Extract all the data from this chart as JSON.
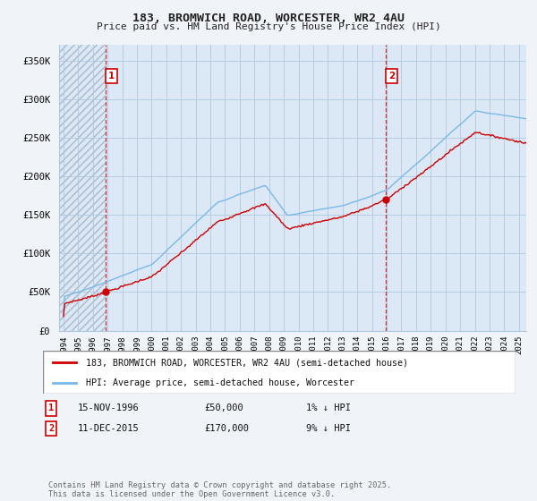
{
  "title": "183, BROMWICH ROAD, WORCESTER, WR2 4AU",
  "subtitle": "Price paid vs. HM Land Registry's House Price Index (HPI)",
  "ylabel_ticks": [
    "£0",
    "£50K",
    "£100K",
    "£150K",
    "£200K",
    "£250K",
    "£300K",
    "£350K"
  ],
  "ytick_values": [
    0,
    50000,
    100000,
    150000,
    200000,
    250000,
    300000,
    350000
  ],
  "ylim": [
    0,
    370000
  ],
  "xlim_start": 1993.7,
  "xlim_end": 2025.5,
  "sale1_date": 1996.88,
  "sale1_price": 50000,
  "sale1_label": "1",
  "sale2_date": 2015.95,
  "sale2_price": 170000,
  "sale2_label": "2",
  "hpi_color": "#7ab8e8",
  "price_color": "#cc0000",
  "legend_line1": "183, BROMWICH ROAD, WORCESTER, WR2 4AU (semi-detached house)",
  "legend_line2": "HPI: Average price, semi-detached house, Worcester",
  "ann1_date": "15-NOV-1996",
  "ann1_price": "£50,000",
  "ann1_hpi": "1% ↓ HPI",
  "ann2_date": "11-DEC-2015",
  "ann2_price": "£170,000",
  "ann2_hpi": "9% ↓ HPI",
  "footer": "Contains HM Land Registry data © Crown copyright and database right 2025.\nThis data is licensed under the Open Government Licence v3.0.",
  "background_color": "#f0f4f8",
  "plot_bg_color": "#dce8f5",
  "grid_color": "#b0c8e0",
  "hatch_region_alpha": 0.35
}
